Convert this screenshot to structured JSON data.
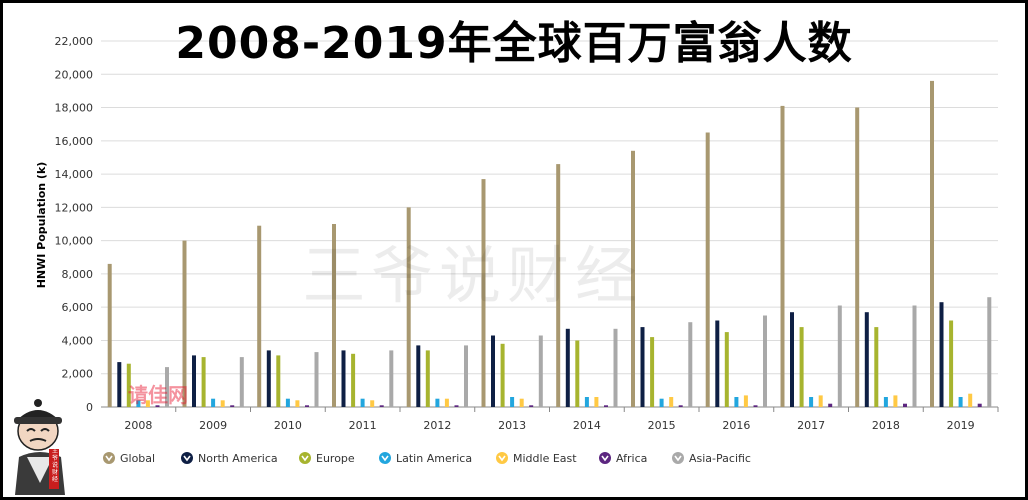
{
  "page": {
    "title": "2008-2019年全球百万富翁人数",
    "watermark": "王爷说财经",
    "stamp": "请佳网",
    "mascot_seal": "王爷说财经"
  },
  "chart_data": {
    "type": "bar",
    "title": "2008-2019年全球百万富翁人数",
    "xlabel": "",
    "ylabel": "HNWI Population (k)",
    "ylim": [
      0,
      22000
    ],
    "yticks": [
      0,
      2000,
      4000,
      6000,
      8000,
      10000,
      12000,
      14000,
      16000,
      18000,
      20000,
      22000
    ],
    "ytick_labels": [
      "0",
      "2,000",
      "4,000",
      "6,000",
      "8,000",
      "10,000",
      "12,000",
      "14,000",
      "16,000",
      "18,000",
      "20,000",
      "22,000"
    ],
    "grid": true,
    "legend": "bottom",
    "categories": [
      "2008",
      "2009",
      "2010",
      "2011",
      "2012",
      "2013",
      "2014",
      "2015",
      "2016",
      "2017",
      "2018",
      "2019"
    ],
    "series": [
      {
        "name": "Global",
        "color": "#a89870",
        "values": [
          8600,
          10000,
          10900,
          11000,
          12000,
          13700,
          14600,
          15400,
          16500,
          18100,
          18000,
          19600
        ]
      },
      {
        "name": "North America",
        "color": "#0e1f44",
        "values": [
          2700,
          3100,
          3400,
          3400,
          3700,
          4300,
          4700,
          4800,
          5200,
          5700,
          5700,
          6300
        ]
      },
      {
        "name": "Europe",
        "color": "#a7b42f",
        "values": [
          2600,
          3000,
          3100,
          3200,
          3400,
          3800,
          4000,
          4200,
          4500,
          4800,
          4800,
          5200
        ]
      },
      {
        "name": "Latin America",
        "color": "#22a6de",
        "values": [
          400,
          500,
          500,
          500,
          500,
          600,
          600,
          500,
          600,
          600,
          600,
          600
        ]
      },
      {
        "name": "Middle East",
        "color": "#ffc944",
        "values": [
          400,
          400,
          400,
          400,
          500,
          500,
          600,
          600,
          700,
          700,
          700,
          800
        ]
      },
      {
        "name": "Africa",
        "color": "#5c2680",
        "values": [
          100,
          100,
          100,
          100,
          100,
          100,
          100,
          100,
          100,
          200,
          200,
          200
        ]
      },
      {
        "name": "Asia-Pacific",
        "color": "#a9a9a9",
        "values": [
          2400,
          3000,
          3300,
          3400,
          3700,
          4300,
          4700,
          5100,
          5500,
          6100,
          6100,
          6600
        ]
      }
    ]
  }
}
